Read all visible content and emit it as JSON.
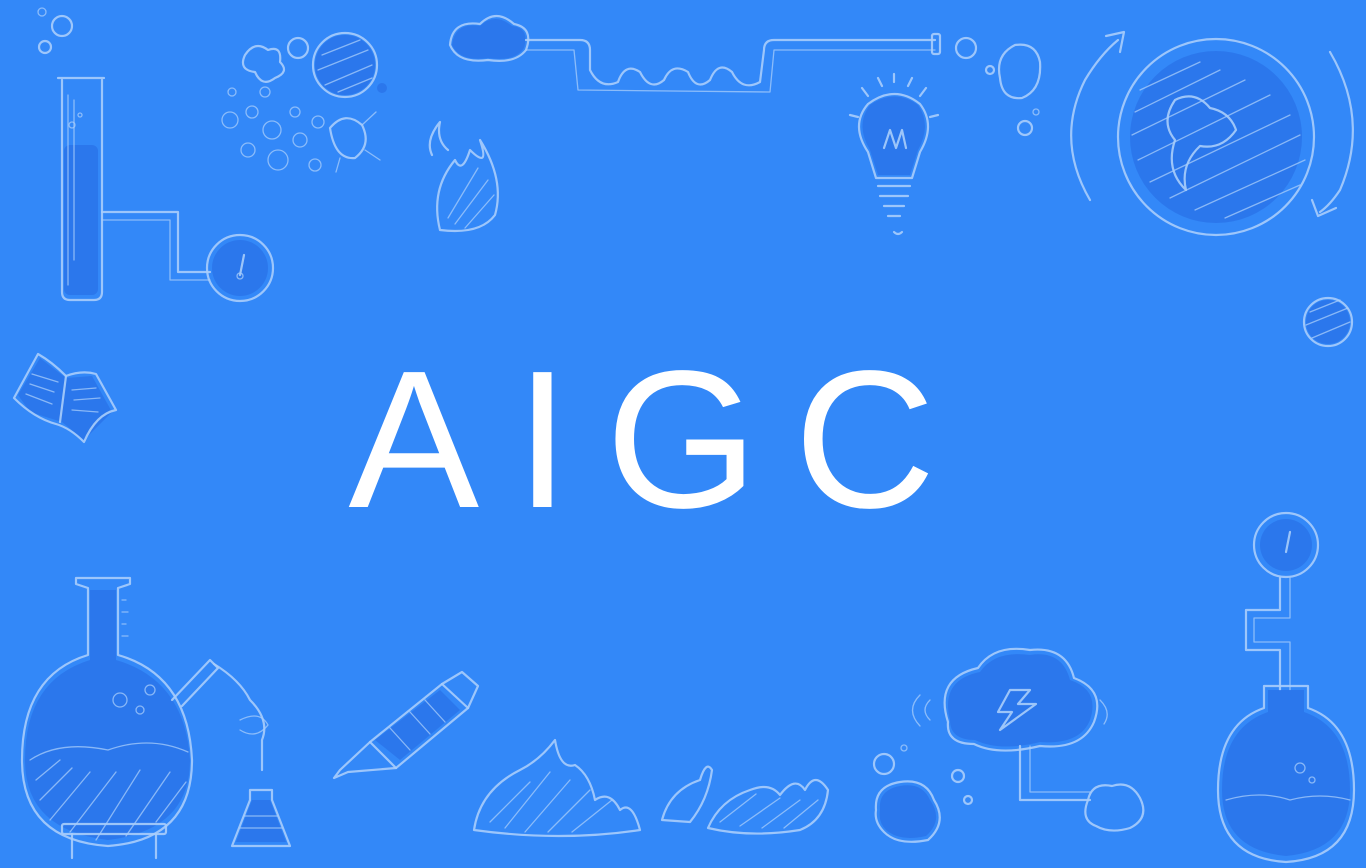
{
  "title": "AIGC",
  "colors": {
    "background": "#3388f8",
    "doodle_stroke": "#a9cdfb",
    "doodle_fill": "#2a74ea",
    "title": "#ffffff"
  },
  "illustrations": [
    "test-tube-icon",
    "pressure-gauge-icon",
    "bacteria-cells-icon",
    "flame-icon",
    "cloud-coil-pipe-icon",
    "light-bulb-icon",
    "globe-refresh-icon",
    "planet-icon",
    "open-book-icon",
    "round-flask-icon",
    "erlenmeyer-flask-icon",
    "fountain-pen-icon",
    "flames-icon",
    "thunder-cloud-icon",
    "gauge-flask-icon"
  ]
}
